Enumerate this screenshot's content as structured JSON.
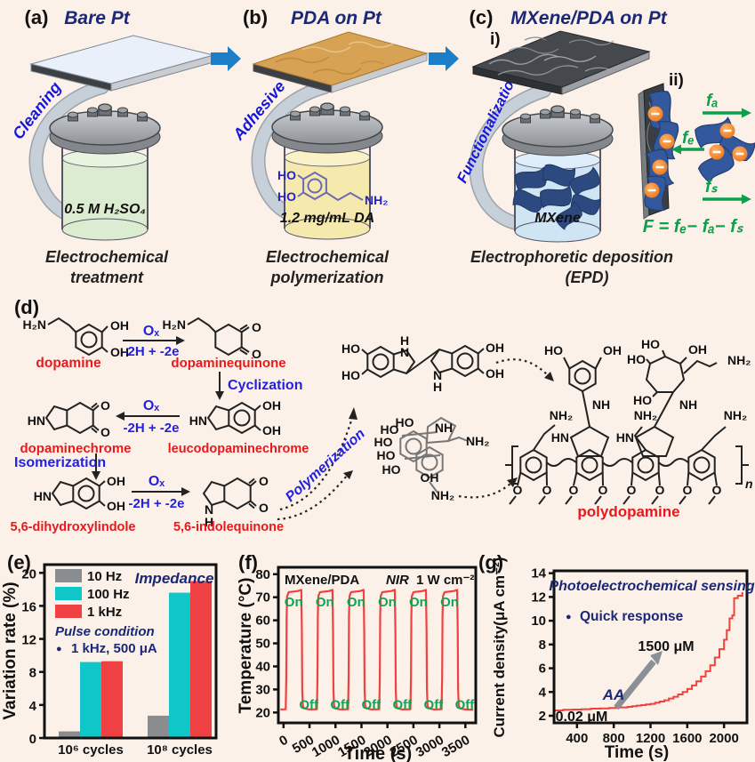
{
  "colors": {
    "background": "#fcf1e8",
    "accent_navy": "#1b2875",
    "accent_blue": "#1616d8",
    "label_red": "#e8191c",
    "green": "#0ca04c",
    "arrow_blue": "#1b7ec6",
    "bar_gray": "#8a8d90",
    "bar_cyan": "#0fc6c9",
    "bar_red": "#ef4044",
    "curve_red": "#f0413f"
  },
  "panels": {
    "a": {
      "label": "(a)",
      "title": "Bare Pt",
      "arrow_label": "Cleaning",
      "solution": "0.5 M H₂SO₄",
      "caption1": "Electrochemical",
      "caption2": "treatment"
    },
    "b": {
      "label": "(b)",
      "title": "PDA on Pt",
      "arrow_label": "Adhesive",
      "mol_ho1": "HO",
      "mol_ho2": "HO",
      "mol_nh2": "NH₂",
      "solution": "1.2 mg/mL DA",
      "caption1": "Electrochemical",
      "caption2": "polymerization"
    },
    "c": {
      "label": "(c)",
      "title": "MXene/PDA on Pt",
      "sub_i": "i)",
      "sub_ii": "ii)",
      "arrow_label": "Functionalization",
      "solution": "MXene",
      "caption1": "Electrophoretic deposition",
      "caption2": "(EPD)",
      "force_a": "fₐ",
      "force_e": "fₑ",
      "force_s": "fₛ",
      "formula": "F = fₑ− fₐ− fₛ"
    }
  },
  "panel_d": {
    "label": "(d)",
    "ox": "Oₓ",
    "redox": "-2H + -2e",
    "step_cyclization": "Cyclization",
    "step_isomerization": "Isomerization",
    "step_polymerization": "Polymerization",
    "names": {
      "m1": "dopamine",
      "m2": "dopaminequinone",
      "m3": "leucodopaminechrome",
      "m4": "dopaminechrome",
      "m5": "5,6-dihydroxylindole",
      "m6": "5,6-indolequinone",
      "m7": "polydopamine"
    },
    "atoms": {
      "h2n": "H₂N",
      "oh": "OH",
      "ho": "HO",
      "hn": "HN",
      "nh": "NH",
      "nh2": "NH₂",
      "o": "O",
      "n": "N",
      "h": "H",
      "repeat": "n"
    }
  },
  "chart_data": [
    {
      "id": "e",
      "type": "bar",
      "label": "(e)",
      "title": "Impedance",
      "ylabel": "Variation rate (%)",
      "categories": [
        "10⁶ cycles",
        "10⁸ cycles"
      ],
      "series": [
        {
          "name": "10 Hz",
          "color": "#8a8d90",
          "values": [
            0.8,
            2.7
          ]
        },
        {
          "name": "100 Hz",
          "color": "#0fc6c9",
          "values": [
            9.2,
            17.6
          ]
        },
        {
          "name": "1 kHz",
          "color": "#ef4044",
          "values": [
            9.3,
            19.0
          ]
        }
      ],
      "ylim": [
        0,
        21
      ],
      "yticks": [
        0,
        4,
        8,
        12,
        16,
        20
      ],
      "annotation_title": "Pulse condition",
      "annotation_bullet": "●",
      "annotation": "1 kHz, 500 μA",
      "legend_position": "upper-left",
      "grid": false
    },
    {
      "id": "f",
      "type": "line",
      "label": "(f)",
      "label_left": "MXene/PDA",
      "label_nir": "NIR",
      "label_power": "1 W cm⁻²",
      "xlabel": "Time (s)",
      "ylabel": "Temperature (°C)",
      "on_label": "On",
      "off_label": "Off",
      "line_color": "#f0413f",
      "on_color": "#11a353",
      "xlim": [
        -100,
        3700
      ],
      "ylim": [
        15.5,
        83
      ],
      "xticks": [
        0,
        500,
        1000,
        1500,
        2000,
        2500,
        3000,
        3500
      ],
      "yticks": [
        20,
        30,
        40,
        50,
        60,
        70,
        80
      ],
      "base_temp": 21,
      "peak_temp": 73,
      "cycles": [
        {
          "on": 50,
          "off": 350
        },
        {
          "on": 650,
          "off": 950
        },
        {
          "on": 1250,
          "off": 1550
        },
        {
          "on": 1850,
          "off": 2150
        },
        {
          "on": 2450,
          "off": 2750
        },
        {
          "on": 3050,
          "off": 3350
        }
      ],
      "t_end": 3650,
      "grid": false
    },
    {
      "id": "g",
      "type": "line",
      "label": "(g)",
      "title": "Photoelectrochemical sensing",
      "bullet": "●",
      "bullet_label": "Quick response",
      "ann_low": "0.02 μM",
      "ann_high": "1500 μM",
      "ann_aa": "AA",
      "xlabel": "Time (s)",
      "ylabel": "Current density(μA cm⁻²)",
      "line_color": "#f0413f",
      "xlim": [
        150,
        2250
      ],
      "ylim": [
        1.4,
        14.2
      ],
      "xticks": [
        400,
        800,
        1200,
        1600,
        2000
      ],
      "yticks": [
        2,
        4,
        6,
        8,
        10,
        12,
        14
      ],
      "points": [
        [
          150,
          2.45
        ],
        [
          250,
          2.5
        ],
        [
          350,
          2.52
        ],
        [
          450,
          2.55
        ],
        [
          550,
          2.6
        ],
        [
          650,
          2.62
        ],
        [
          750,
          2.65
        ],
        [
          850,
          2.7
        ],
        [
          950,
          2.75
        ],
        [
          1000,
          2.8
        ],
        [
          1050,
          2.85
        ],
        [
          1100,
          2.9
        ],
        [
          1150,
          2.95
        ],
        [
          1200,
          3.0
        ],
        [
          1250,
          3.1
        ],
        [
          1300,
          3.2
        ],
        [
          1350,
          3.3
        ],
        [
          1400,
          3.45
        ],
        [
          1450,
          3.6
        ],
        [
          1500,
          3.8
        ],
        [
          1550,
          4.0
        ],
        [
          1600,
          4.25
        ],
        [
          1650,
          4.55
        ],
        [
          1700,
          4.9
        ],
        [
          1750,
          5.3
        ],
        [
          1800,
          5.75
        ],
        [
          1850,
          6.25
        ],
        [
          1900,
          6.9
        ],
        [
          1950,
          7.6
        ],
        [
          2000,
          8.4
        ],
        [
          2030,
          9.2
        ],
        [
          2060,
          10.2
        ],
        [
          2090,
          10.45
        ],
        [
          2110,
          11.9
        ],
        [
          2150,
          12.1
        ],
        [
          2200,
          12.4
        ]
      ],
      "grid": false
    }
  ]
}
